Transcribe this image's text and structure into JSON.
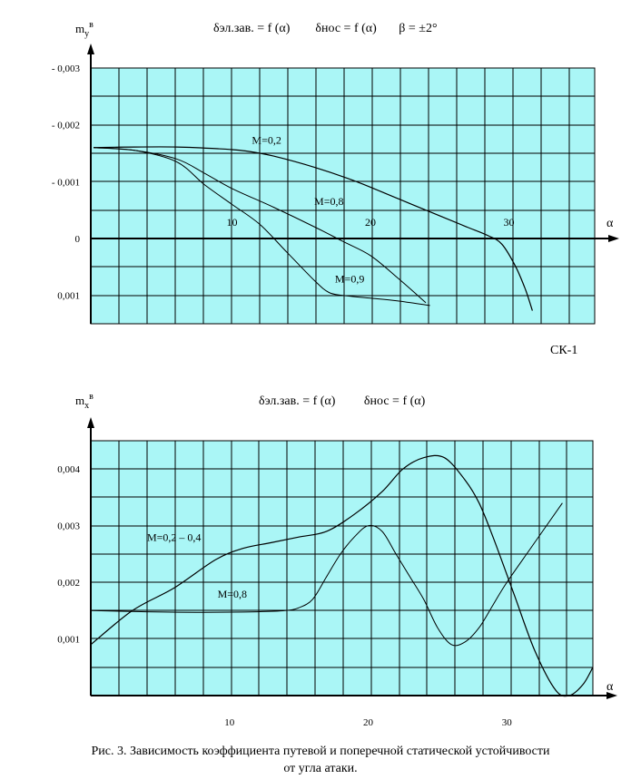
{
  "chart_data": [
    {
      "type": "line",
      "title": "δэл.зав. = f (α)        δнос = f (α)       β = ±2°",
      "ylabel": "m",
      "ylabel_sub": "y",
      "ylabel_sup": "в",
      "xlabel": "α",
      "xlim": [
        -0.2,
        36.2
      ],
      "ylim": [
        0.0015,
        -0.003
      ],
      "grid": true,
      "x_ticks": [
        {
          "value": 10,
          "label": "10"
        },
        {
          "value": 20,
          "label": "20"
        },
        {
          "value": 30,
          "label": "30"
        }
      ],
      "y_ticks": [
        {
          "value": -0.003,
          "label": "- 0,003"
        },
        {
          "value": -0.002,
          "label": "- 0,002"
        },
        {
          "value": -0.001,
          "label": "- 0,001"
        },
        {
          "value": 0,
          "label": "0"
        },
        {
          "value": 0.001,
          "label": "0,001"
        }
      ],
      "series": [
        {
          "name": "M=0,2",
          "x": [
            0,
            3,
            6,
            9,
            11,
            13,
            16,
            19,
            22,
            25,
            27,
            28.5,
            29.5,
            30.5,
            31.2,
            31.7
          ],
          "y": [
            -0.0016,
            -0.00161,
            -0.00161,
            -0.00158,
            -0.00154,
            -0.00145,
            -0.00125,
            -0.001,
            -0.0007,
            -0.0004,
            -0.0002,
            -5e-05,
            0.0001,
            0.0005,
            0.0009,
            0.00127
          ]
        },
        {
          "name": "M=0,8",
          "x": [
            0,
            3,
            6,
            8,
            10,
            13,
            16,
            18,
            20,
            22,
            24
          ],
          "y": [
            -0.0016,
            -0.00155,
            -0.0014,
            -0.00115,
            -0.00088,
            -0.00055,
            -0.0002,
            5e-05,
            0.0003,
            0.0007,
            0.00113
          ]
        },
        {
          "name": "M=0,9",
          "x": [
            0,
            3,
            6,
            8,
            10,
            12,
            14,
            16,
            17,
            18,
            20,
            22,
            24.3
          ],
          "y": [
            -0.0016,
            -0.00155,
            -0.00135,
            -0.00095,
            -0.0006,
            -0.00025,
            0.00025,
            0.00075,
            0.00095,
            0.001,
            0.00105,
            0.0011,
            0.00118
          ]
        }
      ],
      "annotations": [
        {
          "text": "M=0,2",
          "x": 12.5,
          "y": -0.00167
        },
        {
          "text": "M=0,8",
          "x": 17,
          "y": -0.00059
        },
        {
          "text": "M=0,9",
          "x": 18.5,
          "y": 0.00077
        },
        {
          "text": "10",
          "x": 10,
          "y": -0.00022
        },
        {
          "text": "20",
          "x": 20,
          "y": -0.00022
        },
        {
          "text": "30",
          "x": 30,
          "y": -0.00022
        }
      ]
    },
    {
      "type": "line",
      "title": "δэл.зав. = f (α)         δнос = f (α)",
      "ylabel": "m",
      "ylabel_sub": "x",
      "ylabel_sup": "в",
      "xlabel": "α",
      "xlim": [
        0,
        36.2
      ],
      "ylim": [
        0,
        0.0045
      ],
      "grid": true,
      "x_ticks": [
        {
          "value": 10,
          "label": "10"
        },
        {
          "value": 20,
          "label": "20"
        },
        {
          "value": 30,
          "label": "30"
        }
      ],
      "y_ticks": [
        {
          "value": 0.001,
          "label": "0,001"
        },
        {
          "value": 0.002,
          "label": "0,002"
        },
        {
          "value": 0.003,
          "label": "0,003"
        },
        {
          "value": 0.004,
          "label": "0,004"
        }
      ],
      "series": [
        {
          "name": "M=0,2 – 0,4",
          "x": [
            0,
            3,
            6,
            9,
            11,
            13,
            15,
            17,
            19,
            21,
            22.5,
            24,
            25.5,
            27,
            28,
            29,
            30.5,
            32,
            33.5,
            34.5,
            35.5,
            36.2
          ],
          "y": [
            0.0009,
            0.0015,
            0.0019,
            0.0024,
            0.0026,
            0.0027,
            0.0028,
            0.0029,
            0.0032,
            0.0036,
            0.004,
            0.0042,
            0.0042,
            0.0038,
            0.0034,
            0.0028,
            0.0018,
            0.0008,
            0.0001,
            0.0,
            0.0002,
            0.0005
          ]
        },
        {
          "name": "M=0,8",
          "x": [
            0,
            4,
            8,
            12,
            14,
            15,
            16,
            17,
            18,
            19,
            20,
            21,
            22,
            23,
            24,
            25,
            26,
            27,
            28,
            29,
            30,
            32,
            34
          ],
          "y": [
            0.0015,
            0.00148,
            0.00147,
            0.00148,
            0.0015,
            0.00155,
            0.0017,
            0.0021,
            0.0025,
            0.0028,
            0.003,
            0.0029,
            0.0025,
            0.0021,
            0.0017,
            0.0012,
            0.0009,
            0.00095,
            0.0012,
            0.0016,
            0.002,
            0.0027,
            0.0034
          ]
        }
      ],
      "annotations": [
        {
          "text": "M=0,2 – 0,4",
          "x": 6,
          "y": 0.00273
        },
        {
          "text": "M=0,8",
          "x": 10.2,
          "y": 0.00173
        }
      ]
    }
  ],
  "sk_label": "СК-1",
  "caption_line1": "Рис. 3. Зависимость коэффициента путевой и поперечной статической устойчивости",
  "caption_line2": "от угла атаки."
}
